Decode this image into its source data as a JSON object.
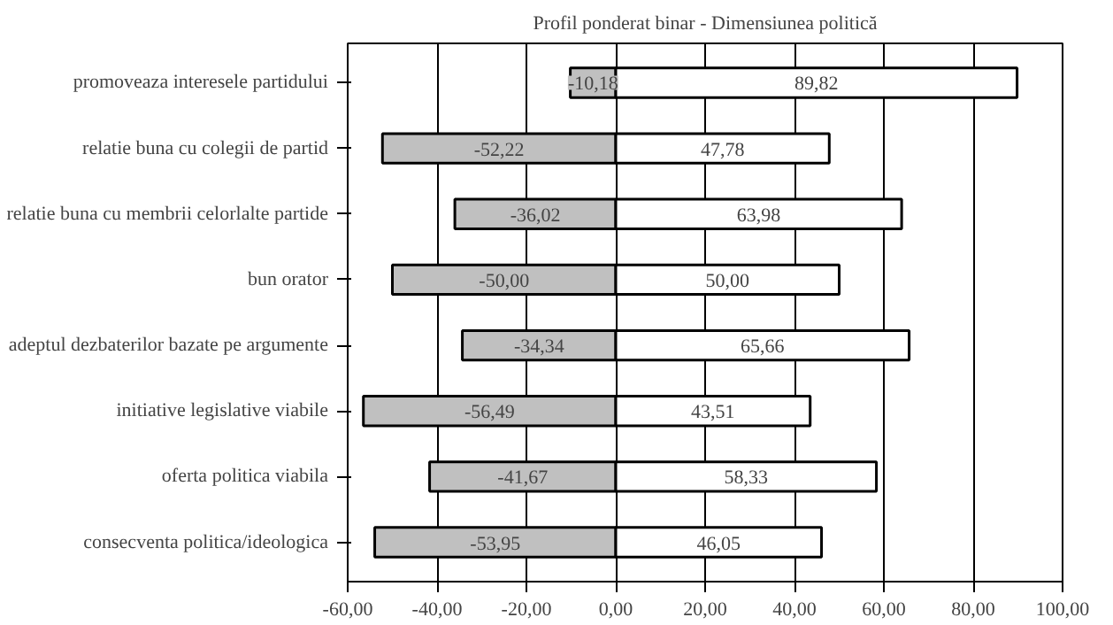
{
  "chart_data": {
    "type": "bar",
    "orientation": "horizontal",
    "stacked": true,
    "title": "Profil ponderat binar - Dimensiunea politică",
    "categories": [
      "promoveaza interesele partidului",
      "relatie buna cu colegii de partid",
      "relatie buna cu membrii celorlalte partide",
      "bun orator",
      "adeptul dezbaterilor bazate pe argumente",
      "initiative legislative viabile",
      "oferta politica viabila",
      "consecventa politica/ideologica"
    ],
    "series": [
      {
        "color": "#c0c0c0",
        "values": [
          -10.18,
          -52.22,
          -36.02,
          -50.0,
          -34.34,
          -56.49,
          -41.67,
          -53.95
        ],
        "value_labels": [
          "-10,18",
          "-52,22",
          "-36,02",
          "-50,00",
          "-34,34",
          "-56,49",
          "-41,67",
          "-53,95"
        ]
      },
      {
        "color": "#ffffff",
        "values": [
          89.82,
          47.78,
          63.98,
          50.0,
          65.66,
          43.51,
          58.33,
          46.05
        ],
        "value_labels": [
          "89,82",
          "47,78",
          "63,98",
          "50,00",
          "65,66",
          "43,51",
          "58,33",
          "46,05"
        ]
      }
    ],
    "xlim": [
      -60,
      100
    ],
    "xticks": [
      {
        "value": -60,
        "label": "-60,00"
      },
      {
        "value": -40,
        "label": "-40,00"
      },
      {
        "value": -20,
        "label": "-20,00"
      },
      {
        "value": 0,
        "label": "0,00"
      },
      {
        "value": 20,
        "label": "20,00"
      },
      {
        "value": 40,
        "label": "40,00"
      },
      {
        "value": 60,
        "label": "60,00"
      },
      {
        "value": 80,
        "label": "80,00"
      },
      {
        "value": 100,
        "label": "100,00"
      }
    ],
    "grid": "x"
  }
}
